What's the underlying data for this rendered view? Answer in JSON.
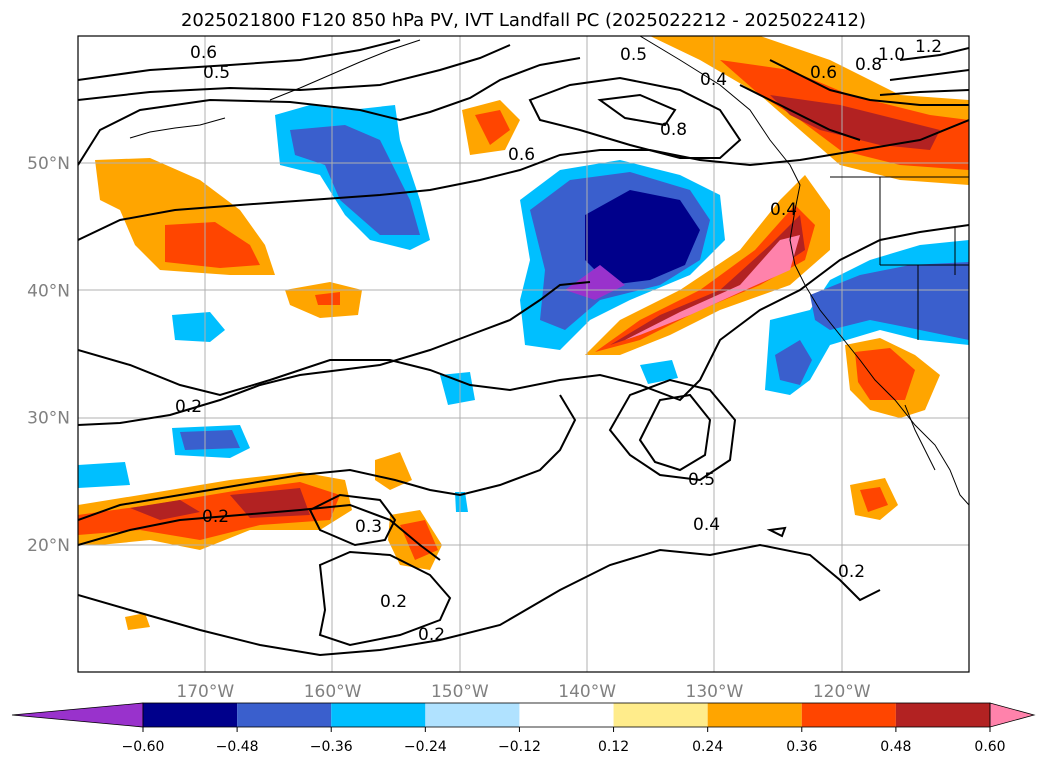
{
  "title": "2025021800 F120 850 hPa PV, IVT Landfall PC (2025022212 - 2025022412)",
  "map": {
    "lon_range": [
      -180,
      -110
    ],
    "lat_range": [
      10,
      60
    ],
    "grid": true,
    "lon_ticks": [
      {
        "lon": -170,
        "label": "170°W"
      },
      {
        "lon": -160,
        "label": "160°W"
      },
      {
        "lon": -150,
        "label": "150°W"
      },
      {
        "lon": -140,
        "label": "140°W"
      },
      {
        "lon": -130,
        "label": "130°W"
      },
      {
        "lon": -120,
        "label": "120°W"
      }
    ],
    "lat_ticks": [
      {
        "lat": 50,
        "label": "50°N"
      },
      {
        "lat": 40,
        "label": "40°N"
      },
      {
        "lat": 30,
        "label": "30°N"
      },
      {
        "lat": 20,
        "label": "20°N"
      }
    ],
    "contour_labels": [
      "0.6",
      "0.5",
      "0.6",
      "0.8",
      "0.4",
      "1.0",
      "1.2",
      "0.8",
      "0.6",
      "0.2",
      "0.2",
      "0.3",
      "0.2",
      "0.2",
      "0.5",
      "0.4",
      "0.2",
      "0.5",
      "0.4"
    ]
  },
  "colorbar": {
    "levels": [
      "−0.60",
      "−0.48",
      "−0.36",
      "−0.24",
      "−0.12",
      "0.12",
      "0.24",
      "0.36",
      "0.48",
      "0.60"
    ],
    "colors": [
      "#9932cc",
      "#00008b",
      "#3a5fcd",
      "#00bfff",
      "#b0e2ff",
      "#ffffff",
      "#ffec8b",
      "#ffa500",
      "#ff4500",
      "#b22222",
      "#ff82ab"
    ],
    "extend": "both"
  }
}
